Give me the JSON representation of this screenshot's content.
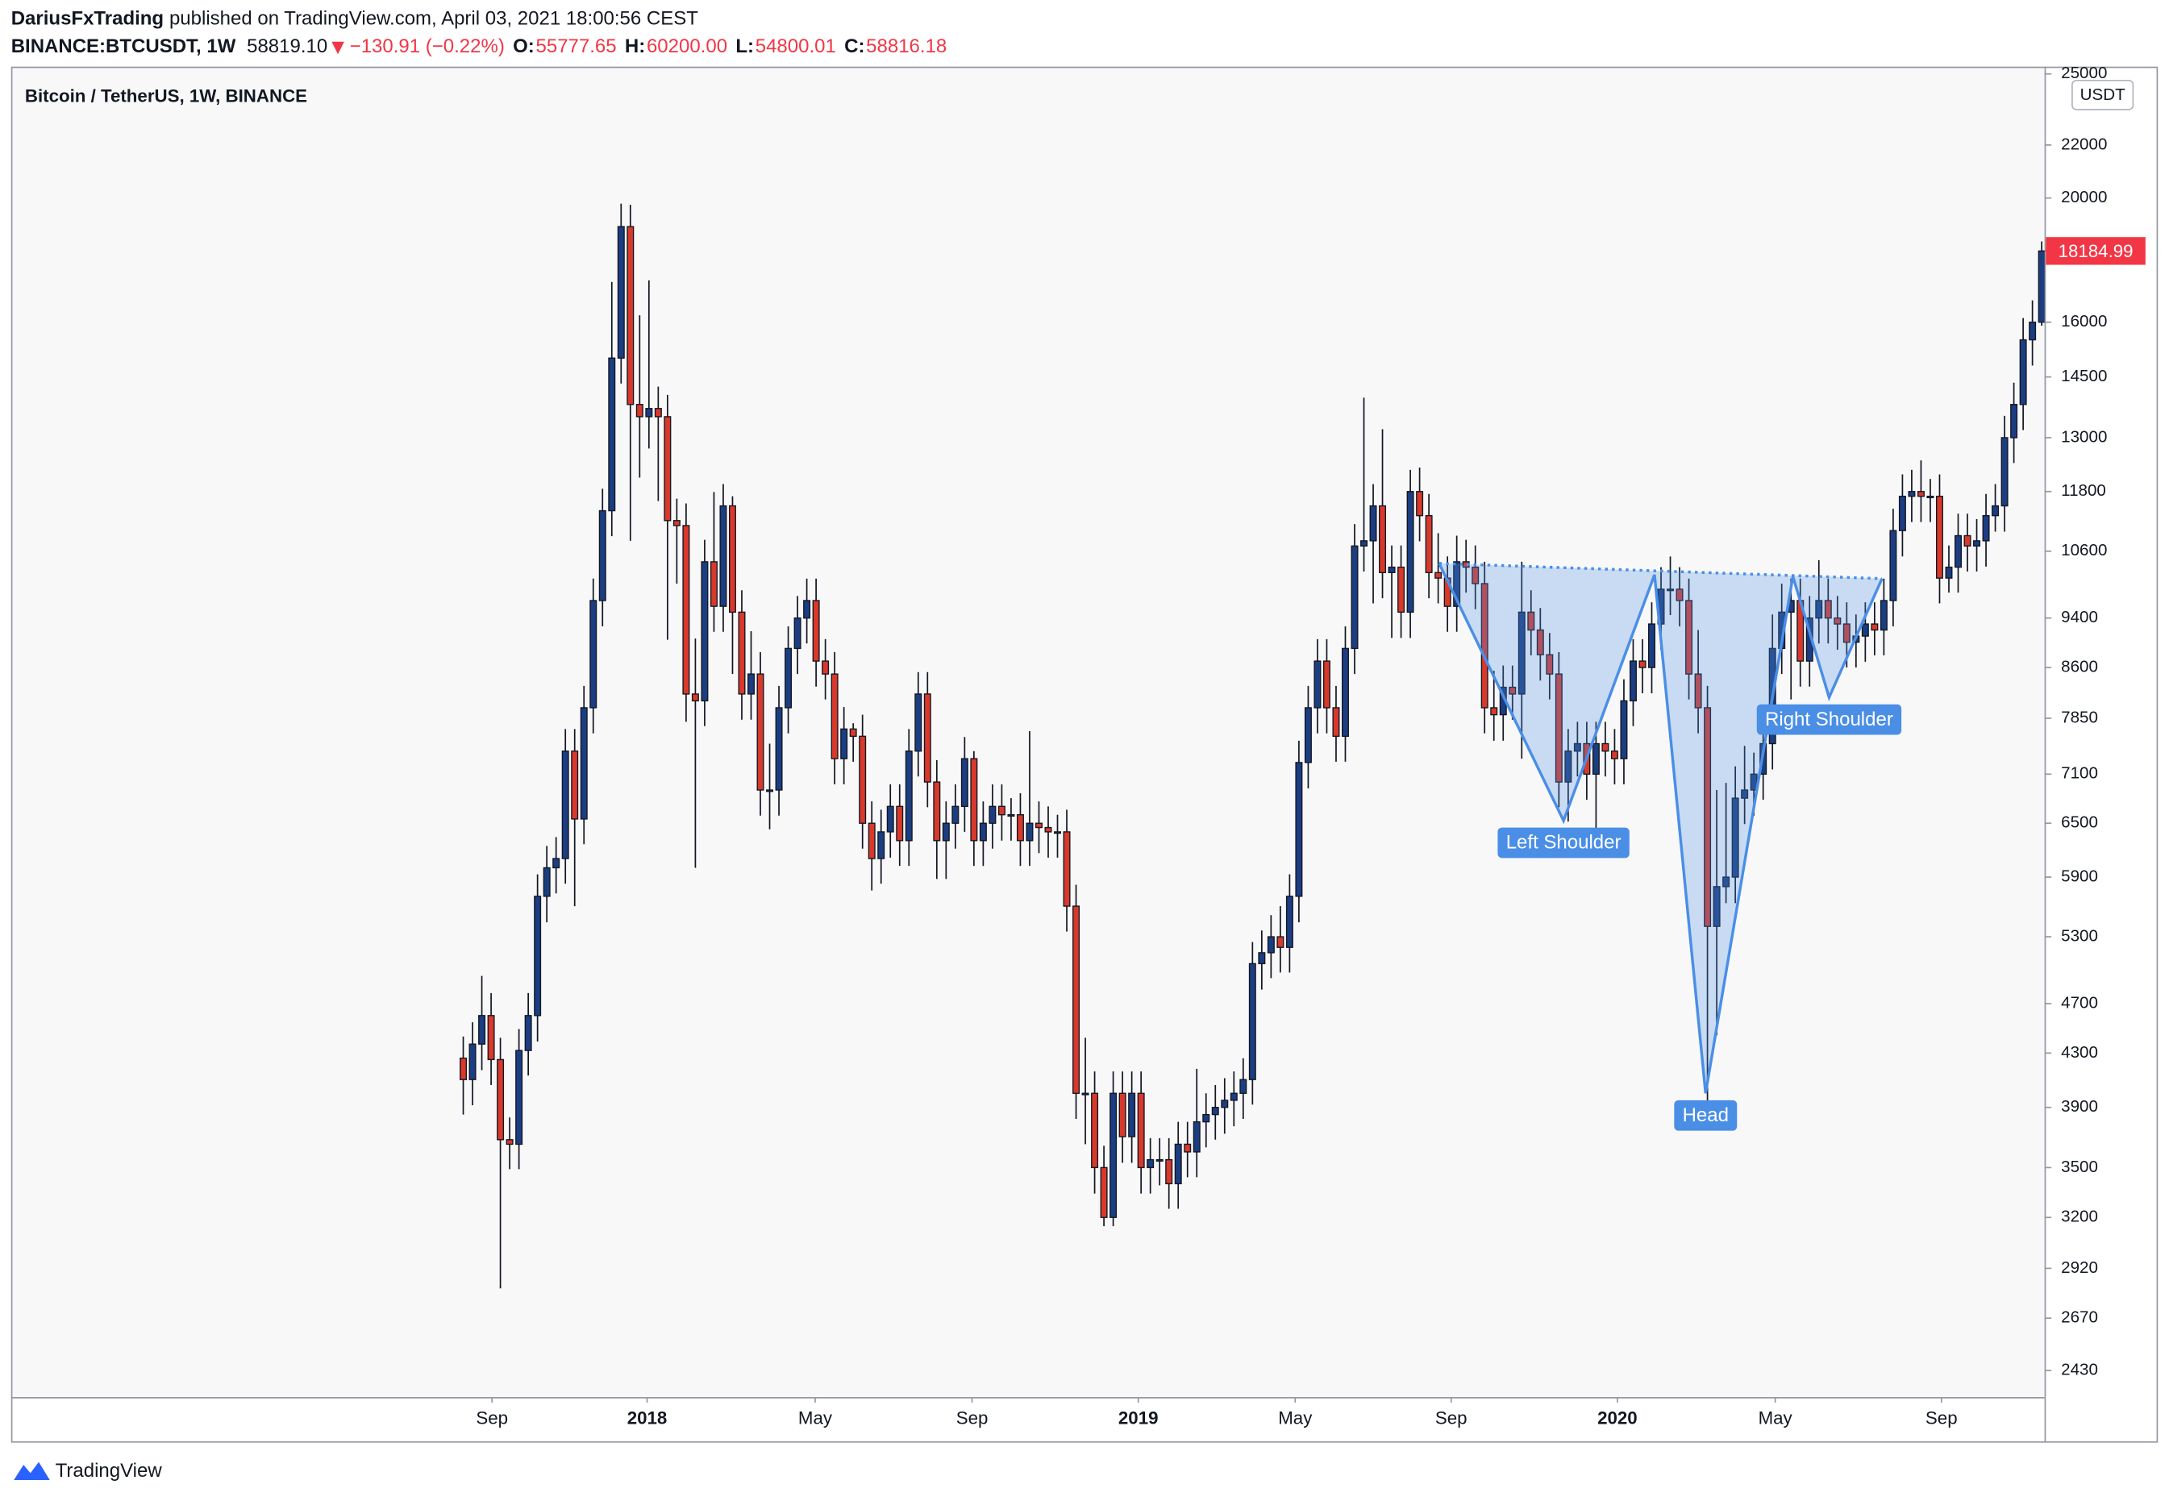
{
  "header": {
    "author": "DariusFxTrading",
    "published": "published on TradingView.com, April 03, 2021 18:00:56 CEST",
    "symbol": "BINANCE:BTCUSDT, 1W",
    "last": "58819.10",
    "change": "−130.91 (−0.22%)",
    "ohlc": [
      {
        "label": "O:",
        "value": "55777.65"
      },
      {
        "label": "H:",
        "value": "60200.00"
      },
      {
        "label": "L:",
        "value": "54800.01"
      },
      {
        "label": "C:",
        "value": "58816.18"
      }
    ]
  },
  "footer": {
    "brand": "TradingView"
  },
  "chart_data": {
    "type": "candlestick",
    "title": "Bitcoin / TetherUS, 1W, BINANCE",
    "currency": "USDT",
    "up_color": "#1b3d82",
    "down_color": "#d8392b",
    "wick_color": "#131722",
    "log_scale": true,
    "grid": false,
    "ylim": [
      2317,
      25330
    ],
    "yticks": [
      25000,
      22000,
      20000,
      16000,
      14500,
      13000,
      11800,
      10600,
      9400,
      8600,
      7850,
      7100,
      6500,
      5900,
      5300,
      4700,
      4300,
      3900,
      3500,
      3200,
      2920,
      2670,
      2430
    ],
    "xlim": [
      -48.7,
      170.3
    ],
    "xticks": [
      {
        "value": 3.1,
        "label": "Sep"
      },
      {
        "value": 19.8,
        "label": "2018"
      },
      {
        "value": 37.9,
        "label": "May"
      },
      {
        "value": 54.8,
        "label": "Sep"
      },
      {
        "value": 72.7,
        "label": "2019"
      },
      {
        "value": 89.6,
        "label": "May"
      },
      {
        "value": 106.4,
        "label": "Sep"
      },
      {
        "value": 124.3,
        "label": "2020"
      },
      {
        "value": 141.3,
        "label": "May"
      },
      {
        "value": 159.2,
        "label": "Sep"
      }
    ],
    "last_price": {
      "value": 18184.99,
      "color": "#f23645"
    },
    "open": [
      4261,
      4100,
      4370,
      4600,
      4250,
      3680,
      3650,
      4320,
      4600,
      5700,
      6000,
      6100,
      7400,
      6550,
      8000,
      9700,
      11400,
      15000,
      19000,
      13800,
      13500,
      13700,
      13500,
      11200,
      11100,
      8200,
      8100,
      10400,
      9600,
      11500,
      9500,
      8200,
      8500,
      6900,
      6900,
      8000,
      8900,
      9400,
      9700,
      8700,
      8500,
      7300,
      7700,
      7600,
      6500,
      6100,
      6400,
      6700,
      6300,
      7400,
      8200,
      7000,
      6300,
      6500,
      6700,
      7300,
      6300,
      6500,
      6700,
      6600,
      6600,
      6300,
      6500,
      6450,
      6400,
      6400,
      5600,
      4000,
      4000,
      3500,
      3200,
      4000,
      3700,
      4000,
      3500,
      3550,
      3550,
      3400,
      3650,
      3600,
      3800,
      3850,
      3900,
      3950,
      4000,
      4100,
      5050,
      5150,
      5300,
      5200,
      5700,
      7250,
      8000,
      8700,
      8000,
      7600,
      8900,
      10700,
      10800,
      11500,
      10200,
      10300,
      9500,
      11800,
      11300,
      10200,
      10100,
      9600,
      10400,
      10300,
      10000,
      8000,
      7900,
      8300,
      8200,
      9500,
      9200,
      8800,
      8500,
      7000,
      7400,
      7500,
      7100,
      7500,
      7400,
      7300,
      8100,
      8700,
      8600,
      9300,
      9900,
      9900,
      9700,
      8500,
      8000,
      5400,
      5800,
      5900,
      6800,
      6900,
      7100,
      7500,
      8900,
      9500,
      9700,
      8700,
      9400,
      9700,
      9400,
      9300,
      9000,
      9100,
      9300,
      9200,
      9700,
      11000,
      11700,
      11800,
      11700,
      11700,
      10100,
      10300,
      10900,
      10700,
      10800,
      11300,
      11500,
      13000,
      13800,
      15500,
      16000
    ],
    "high": [
      4430,
      4545,
      4940,
      4790,
      4420,
      3830,
      4490,
      4790,
      5930,
      6240,
      6340,
      7700,
      7700,
      8320,
      10090,
      11860,
      17200,
      19800,
      19760,
      16200,
      17250,
      14250,
      14040,
      11650,
      11550,
      9060,
      10820,
      11790,
      11960,
      11700,
      9880,
      9180,
      8840,
      7500,
      8320,
      9260,
      9780,
      10090,
      10090,
      9050,
      8840,
      8010,
      7780,
      7900,
      6760,
      6660,
      6970,
      6970,
      7700,
      8530,
      8530,
      7280,
      6760,
      6970,
      7590,
      7400,
      6760,
      6970,
      6970,
      6800,
      6860,
      7670,
      6760,
      6700,
      6600,
      6660,
      5820,
      4420,
      4160,
      3640,
      4160,
      4160,
      4160,
      4160,
      3690,
      3690,
      3690,
      3800,
      3800,
      4180,
      4000,
      4060,
      4110,
      4160,
      4260,
      5250,
      5360,
      5510,
      5600,
      5930,
      7540,
      8320,
      9050,
      9050,
      8320,
      9260,
      11130,
      13970,
      11960,
      13200,
      10710,
      10710,
      12270,
      12320,
      11750,
      10950,
      10500,
      10900,
      10820,
      10710,
      10400,
      8550,
      8630,
      8630,
      10400,
      9880,
      9570,
      9150,
      8840,
      7700,
      7800,
      7800,
      7800,
      7800,
      7700,
      8420,
      9050,
      9050,
      9670,
      10300,
      10500,
      10300,
      10090,
      9200,
      8320,
      6900,
      6990,
      7200,
      7470,
      7380,
      7800,
      9460,
      10000,
      10090,
      10090,
      9780,
      10430,
      10090,
      9780,
      9670,
      9460,
      9670,
      9670,
      10090,
      11440,
      12170,
      12270,
      12480,
      12070,
      12170,
      10710,
      11340,
      11340,
      11230,
      11750,
      11960,
      13520,
      14350,
      16120,
      16640,
      18500
    ],
    "low": [
      3850,
      3915,
      4170,
      4060,
      2817,
      3490,
      3490,
      4130,
      4390,
      5440,
      5730,
      5830,
      5600,
      6260,
      7640,
      9260,
      10890,
      14330,
      10800,
      12100,
      12750,
      11600,
      9040,
      10000,
      7800,
      6000,
      7740,
      9170,
      9170,
      8500,
      7830,
      7830,
      6590,
      6430,
      6590,
      7640,
      8500,
      8980,
      8310,
      8120,
      6970,
      6970,
      7260,
      6210,
      5760,
      5830,
      6110,
      6020,
      6020,
      7070,
      6690,
      5880,
      5880,
      6210,
      6400,
      6020,
      6020,
      6210,
      6300,
      6300,
      6020,
      6020,
      6160,
      6110,
      6110,
      5350,
      3820,
      3650,
      3340,
      3150,
      3150,
      3530,
      3530,
      3340,
      3340,
      3390,
      3250,
      3250,
      3440,
      3440,
      3630,
      3680,
      3720,
      3770,
      3820,
      3920,
      4820,
      4920,
      4970,
      4970,
      5440,
      6920,
      7640,
      7640,
      7260,
      7260,
      8500,
      10220,
      9650,
      9740,
      9070,
      9070,
      9070,
      10790,
      9740,
      9650,
      9170,
      9170,
      9840,
      9550,
      7640,
      7540,
      7540,
      7830,
      7300,
      8790,
      8400,
      8120,
      6690,
      6520,
      7070,
      6780,
      6430,
      7070,
      6970,
      6970,
      7740,
      8210,
      8210,
      8880,
      9450,
      9260,
      8120,
      7640,
      3800,
      4440,
      5630,
      5630,
      6490,
      6590,
      6780,
      7160,
      8500,
      8120,
      8310,
      8310,
      8980,
      8980,
      8880,
      8600,
      8600,
      8690,
      8790,
      8790,
      9260,
      10500,
      11170,
      11170,
      11170,
      9650,
      9840,
      9840,
      10220,
      10220,
      10310,
      10980,
      10980,
      12420,
      13180,
      14800,
      15900
    ],
    "close": [
      4100,
      4370,
      4600,
      4250,
      3680,
      3650,
      4320,
      4600,
      5700,
      6000,
      6100,
      7400,
      6550,
      8000,
      9700,
      11400,
      15000,
      19000,
      13800,
      13500,
      13700,
      13500,
      11200,
      11100,
      8200,
      8100,
      10400,
      9600,
      11500,
      9500,
      8200,
      8500,
      6900,
      6900,
      8000,
      8900,
      9400,
      9700,
      8700,
      8500,
      7300,
      7700,
      7600,
      6500,
      6100,
      6400,
      6700,
      6300,
      7400,
      8200,
      7000,
      6300,
      6500,
      6700,
      7300,
      6300,
      6500,
      6700,
      6600,
      6600,
      6300,
      6500,
      6450,
      6400,
      6400,
      5600,
      4000,
      4000,
      3500,
      3200,
      4000,
      3700,
      4000,
      3500,
      3550,
      3550,
      3400,
      3650,
      3600,
      3800,
      3850,
      3900,
      3950,
      4000,
      4100,
      5050,
      5150,
      5300,
      5200,
      5700,
      7250,
      8000,
      8700,
      8000,
      7600,
      8900,
      10700,
      10800,
      11500,
      10200,
      10300,
      9500,
      11800,
      11300,
      10200,
      10100,
      9600,
      10400,
      10300,
      10000,
      8000,
      7900,
      8300,
      8200,
      9500,
      9200,
      8800,
      8500,
      7000,
      7400,
      7500,
      7100,
      7500,
      7400,
      7300,
      8100,
      8700,
      8600,
      9300,
      9900,
      9900,
      9700,
      8500,
      8000,
      5400,
      5800,
      5900,
      6800,
      6900,
      7100,
      7500,
      8900,
      9500,
      9700,
      8700,
      9400,
      9700,
      9400,
      9300,
      9000,
      9100,
      9300,
      9200,
      9700,
      11000,
      11700,
      11800,
      11700,
      11700,
      10100,
      10300,
      10900,
      10700,
      10800,
      11300,
      11500,
      13000,
      13800,
      15500,
      16000,
      18185
    ],
    "pattern": {
      "color": "#4a8ee6",
      "points": [
        {
          "x": 105.1,
          "y": 10370
        },
        {
          "x": 118.5,
          "y": 6530
        },
        {
          "x": 128.3,
          "y": 10160
        },
        {
          "x": 133.8,
          "y": 4000
        },
        {
          "x": 143.2,
          "y": 10130
        },
        {
          "x": 147.1,
          "y": 8150
        },
        {
          "x": 152.8,
          "y": 10090
        }
      ]
    },
    "annotations": [
      {
        "text": "Left Shoulder",
        "x": 118.5,
        "y": 6530
      },
      {
        "text": "Head",
        "x": 133.8,
        "y": 4000
      },
      {
        "text": "Right Shoulder",
        "x": 147.1,
        "y": 8150
      }
    ]
  }
}
